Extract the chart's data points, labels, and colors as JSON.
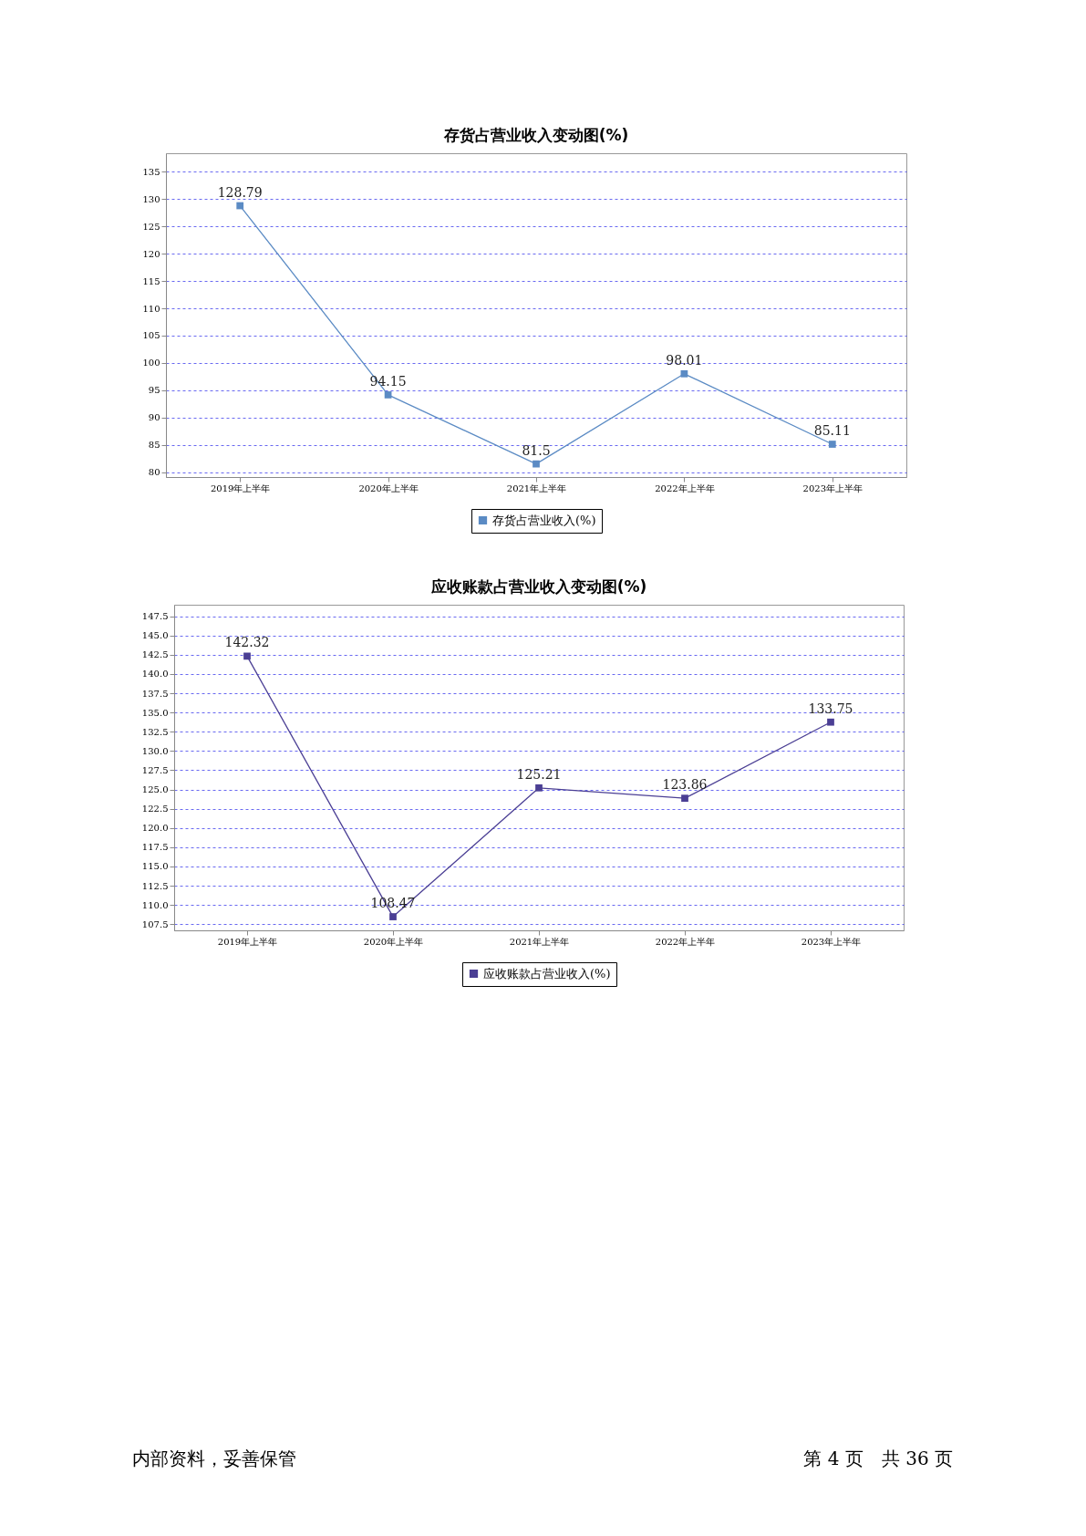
{
  "chart_data": [
    {
      "type": "line",
      "title": "存货占营业收入变动图(%)",
      "categories": [
        "2019年上半年",
        "2020年上半年",
        "2021年上半年",
        "2022年上半年",
        "2023年上半年"
      ],
      "series": [
        {
          "name": "存货占营业收入(%)",
          "color": "#5b8bc4",
          "values": [
            128.79,
            94.15,
            81.5,
            98.01,
            85.11
          ]
        }
      ],
      "ylim": [
        79.1,
        138.4
      ],
      "yticks": [
        80,
        85,
        90,
        95,
        100,
        105,
        110,
        115,
        120,
        125,
        130,
        135
      ],
      "grid": "y",
      "legend": "bottom",
      "marker": "square",
      "line_style": "solid",
      "data_labels": true
    },
    {
      "type": "line",
      "title": "应收账款占营业收入变动图(%)",
      "categories": [
        "2019年上半年",
        "2020年上半年",
        "2021年上半年",
        "2022年上半年",
        "2023年上半年"
      ],
      "series": [
        {
          "name": "应收账款占营业收入(%)",
          "color": "#4b3f94",
          "values": [
            142.32,
            108.47,
            125.21,
            123.86,
            133.75
          ]
        }
      ],
      "ylim": [
        106.7,
        149
      ],
      "yticks": [
        {
          "value": 107.5,
          "label": "107.5"
        },
        {
          "value": 110,
          "label": "110.0"
        },
        {
          "value": 112.5,
          "label": "112.5"
        },
        {
          "value": 115,
          "label": "115.0"
        },
        {
          "value": 117.5,
          "label": "117.5"
        },
        {
          "value": 120,
          "label": "120.0"
        },
        {
          "value": 122.5,
          "label": "122.5"
        },
        {
          "value": 125,
          "label": "125.0"
        },
        {
          "value": 127.5,
          "label": "127.5"
        },
        {
          "value": 130,
          "label": "130.0"
        },
        {
          "value": 132.5,
          "label": "132.5"
        },
        {
          "value": 135,
          "label": "135.0"
        },
        {
          "value": 137.5,
          "label": "137.5"
        },
        {
          "value": 140,
          "label": "140.0"
        },
        {
          "value": 142.5,
          "label": "142.5"
        },
        {
          "value": 145,
          "label": "145.0"
        },
        {
          "value": 147.5,
          "label": "147.5"
        }
      ],
      "grid": "y",
      "legend": "bottom",
      "marker": "square",
      "line_style": "solid",
      "data_labels": true,
      "annotations": [
        "内部资料，妥善保管",
        "第 4 页　共 36 页"
      ]
    }
  ]
}
